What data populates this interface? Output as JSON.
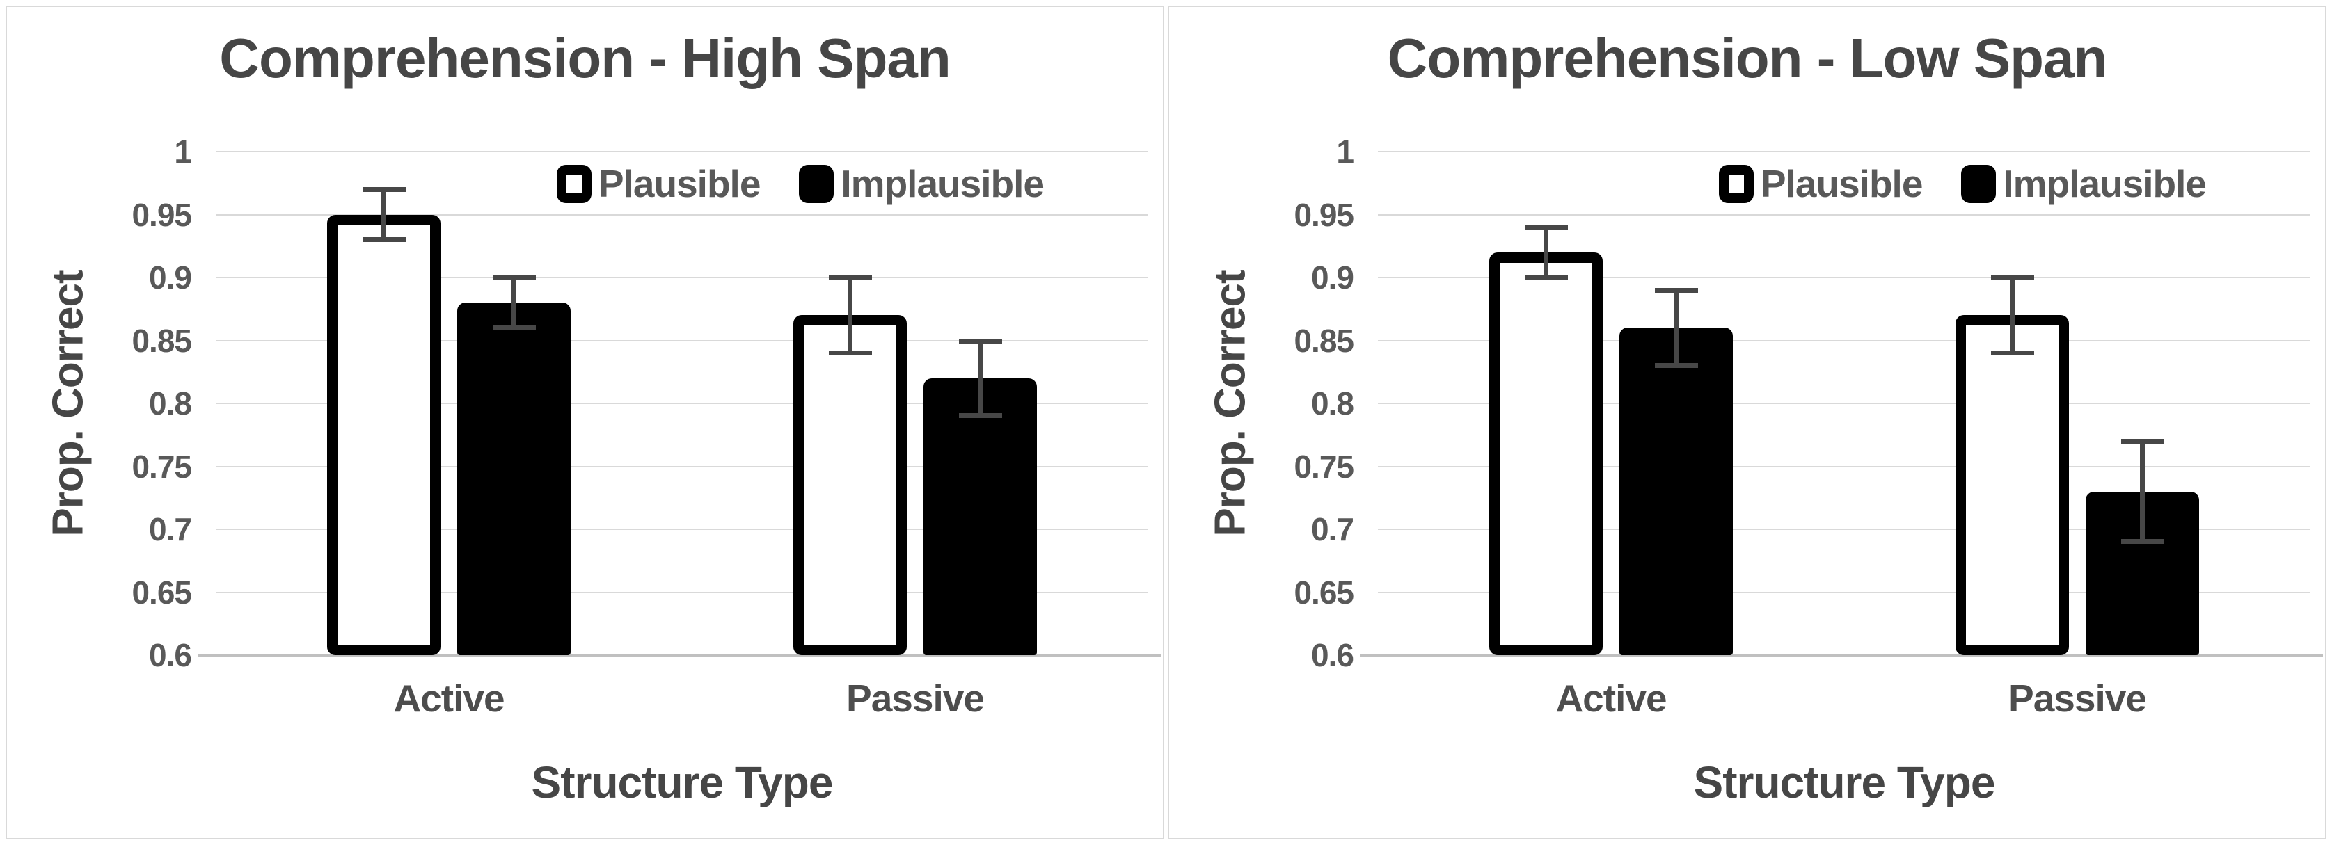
{
  "style": {
    "background": "#ffffff",
    "panel_border": "#d9d9d9",
    "gridline": "#d9d9d9",
    "baseline": "#c0c0c0",
    "title_text": "#464646",
    "tick_text": "#595959",
    "legend_text": "#595959",
    "error_bar": "#474747",
    "bar_white_fill": "#ffffff",
    "bar_black_fill": "#000000",
    "bar_border": "#000000"
  },
  "chart_data": [
    {
      "type": "bar",
      "title": "Comprehension - High Span",
      "xlabel": "Structure Type",
      "ylabel": "Prop. Correct",
      "categories": [
        "Active",
        "Passive"
      ],
      "series": [
        {
          "name": "Plausible",
          "fill": "white",
          "values": [
            0.95,
            0.87
          ],
          "errors": [
            0.02,
            0.03
          ]
        },
        {
          "name": "Implausible",
          "fill": "black",
          "values": [
            0.88,
            0.82
          ],
          "errors": [
            0.02,
            0.03
          ]
        }
      ],
      "ylim": [
        0.6,
        1.0
      ],
      "ytick_step": 0.05,
      "ytick_labels": [
        "1",
        "0.95",
        "0.9",
        "0.85",
        "0.8",
        "0.75",
        "0.7",
        "0.65",
        "0.6"
      ],
      "grid": true,
      "legend_position": "top-right"
    },
    {
      "type": "bar",
      "title": "Comprehension - Low Span",
      "xlabel": "Structure Type",
      "ylabel": "Prop. Correct",
      "categories": [
        "Active",
        "Passive"
      ],
      "series": [
        {
          "name": "Plausible",
          "fill": "white",
          "values": [
            0.92,
            0.87
          ],
          "errors": [
            0.02,
            0.03
          ]
        },
        {
          "name": "Implausible",
          "fill": "black",
          "values": [
            0.86,
            0.73
          ],
          "errors": [
            0.03,
            0.04
          ]
        }
      ],
      "ylim": [
        0.6,
        1.0
      ],
      "ytick_step": 0.05,
      "ytick_labels": [
        "1",
        "0.95",
        "0.9",
        "0.85",
        "0.8",
        "0.75",
        "0.7",
        "0.65",
        "0.6"
      ],
      "grid": true,
      "legend_position": "top-right"
    }
  ]
}
